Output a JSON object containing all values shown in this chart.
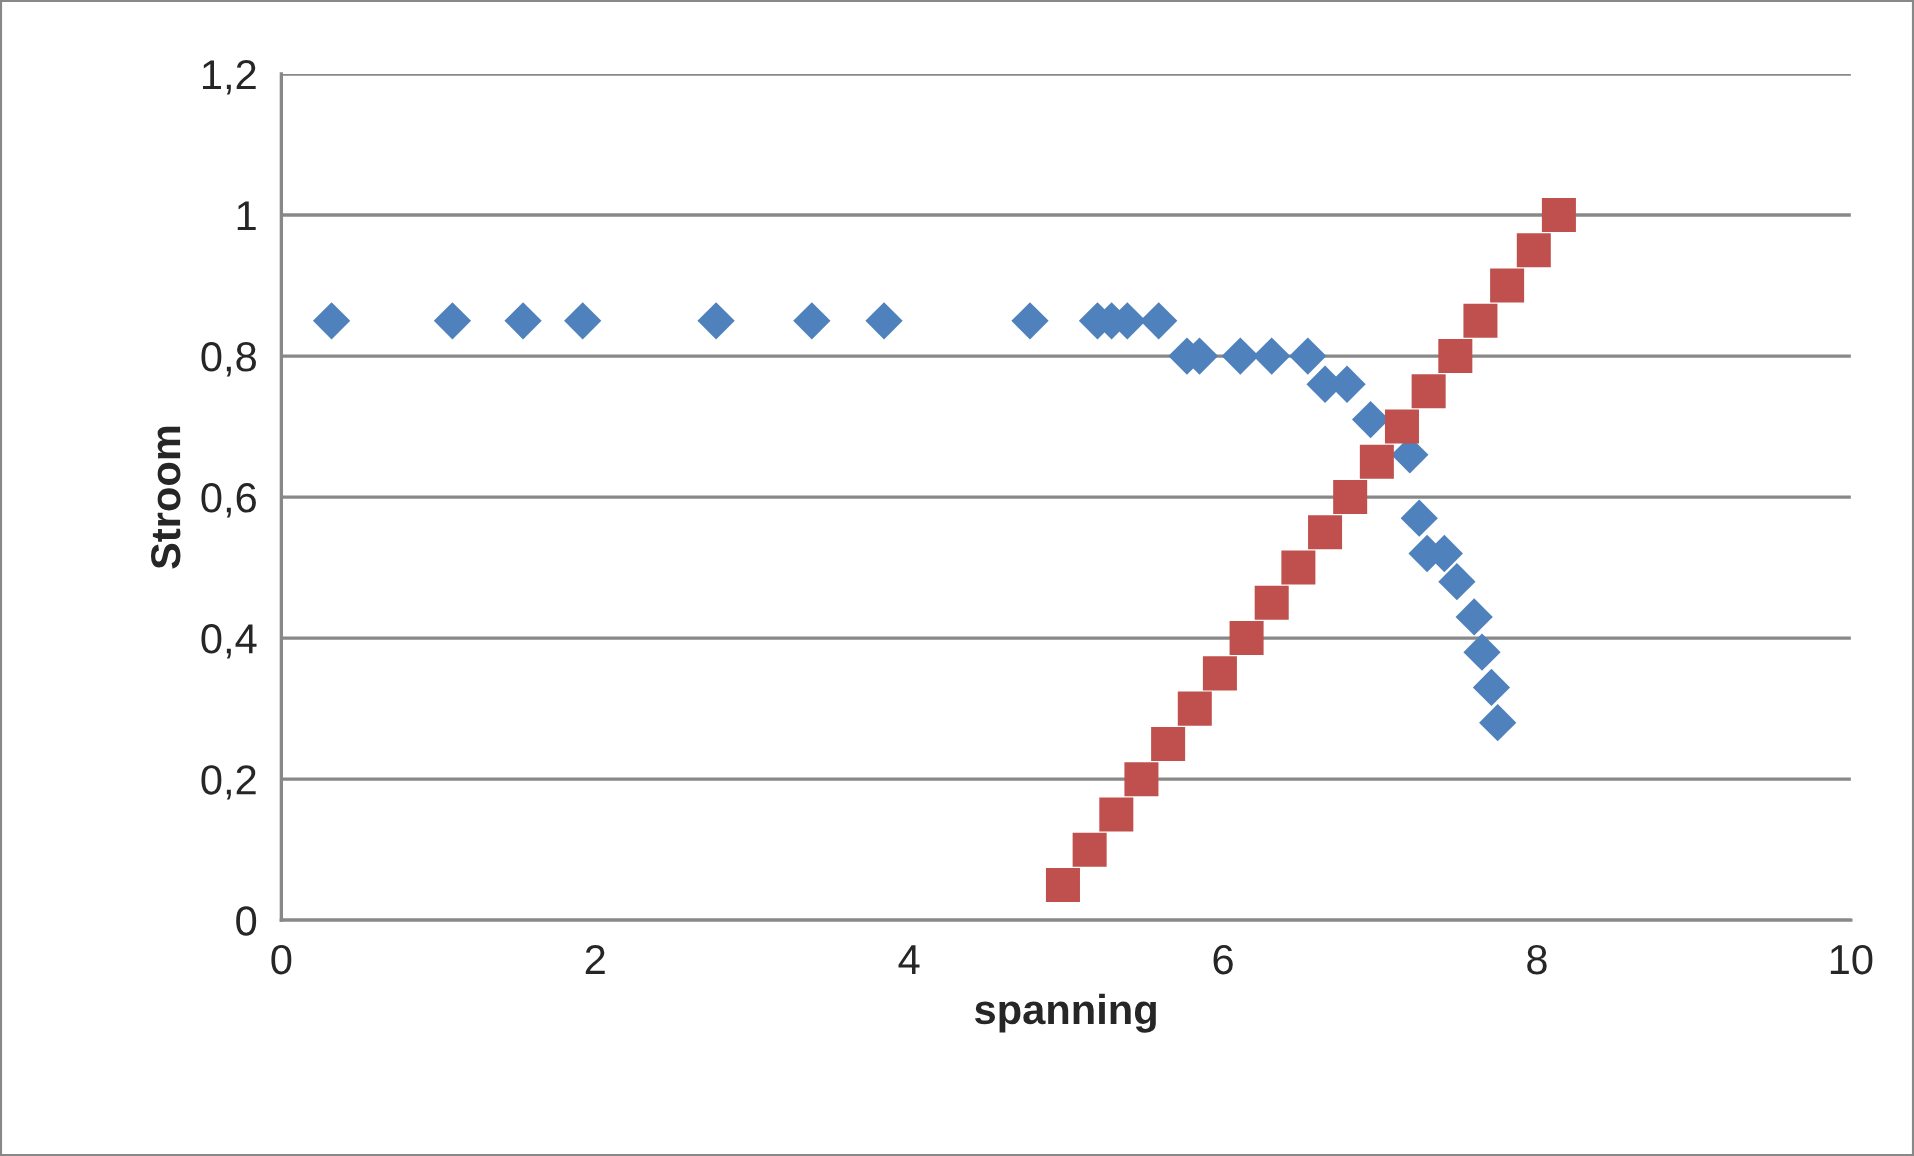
{
  "chart_data": {
    "type": "scatter",
    "xlabel": "spanning",
    "ylabel": "Stroom",
    "xlim": [
      0,
      10
    ],
    "xticks": [
      0,
      2,
      4,
      6,
      8,
      10
    ],
    "ylim": [
      0,
      1.2
    ],
    "yticks": [
      {
        "value": 0,
        "label": "0"
      },
      {
        "value": 0.2,
        "label": "0,2"
      },
      {
        "value": 0.4,
        "label": "0,4"
      },
      {
        "value": 0.6,
        "label": "0,6"
      },
      {
        "value": 0.8,
        "label": "0,8"
      },
      {
        "value": 1,
        "label": "1"
      },
      {
        "value": 1.2,
        "label": "1,2"
      }
    ],
    "grid": "y",
    "series": [
      {
        "color": "#4f81bd",
        "marker": "diamond",
        "x": [
          0.32,
          1.09,
          1.54,
          1.92,
          2.77,
          3.38,
          3.84,
          4.77,
          5.2,
          5.29,
          5.39,
          5.59,
          5.77,
          5.85,
          6.11,
          6.31,
          6.54,
          6.65,
          6.79,
          6.94,
          7.19,
          7.25,
          7.3,
          7.41,
          7.49,
          7.6,
          7.65,
          7.71,
          7.75
        ],
        "values": [
          0.85,
          0.85,
          0.85,
          0.85,
          0.85,
          0.85,
          0.85,
          0.85,
          0.85,
          0.85,
          0.85,
          0.85,
          0.8,
          0.8,
          0.8,
          0.8,
          0.8,
          0.76,
          0.76,
          0.71,
          0.66,
          0.57,
          0.52,
          0.52,
          0.48,
          0.43,
          0.38,
          0.33,
          0.28
        ]
      },
      {
        "color": "#c0504d",
        "marker": "square",
        "x": [
          4.98,
          5.15,
          5.32,
          5.48,
          5.65,
          5.82,
          5.98,
          6.15,
          6.31,
          6.48,
          6.65,
          6.81,
          6.98,
          7.14,
          7.31,
          7.48,
          7.64,
          7.81,
          7.98,
          8.14
        ],
        "values": [
          0.05,
          0.1,
          0.15,
          0.2,
          0.25,
          0.3,
          0.35,
          0.4,
          0.45,
          0.5,
          0.55,
          0.6,
          0.65,
          0.7,
          0.75,
          0.8,
          0.85,
          0.9,
          0.95,
          1.0
        ]
      }
    ]
  }
}
